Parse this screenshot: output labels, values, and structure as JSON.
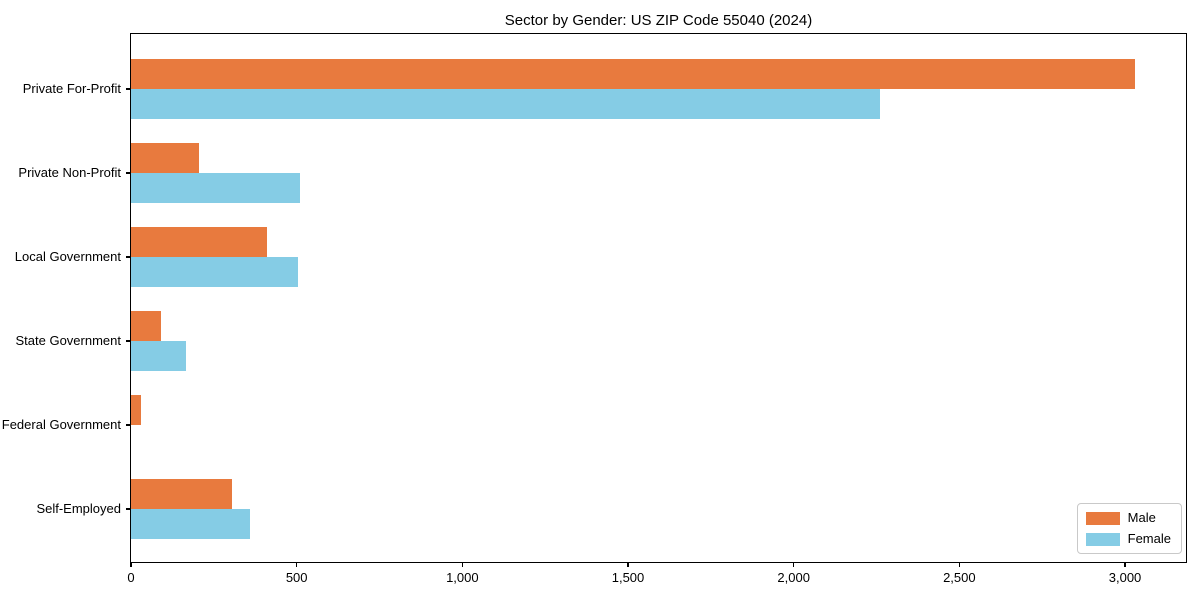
{
  "chart_data": {
    "type": "bar",
    "orientation": "horizontal",
    "title": "Sector by Gender: US ZIP Code 55040 (2024)",
    "categories": [
      "Private For-Profit",
      "Private Non-Profit",
      "Local Government",
      "State Government",
      "Federal Government",
      "Self-Employed"
    ],
    "series": [
      {
        "name": "Male",
        "color": "#E87A3E",
        "values": [
          3030,
          205,
          410,
          90,
          30,
          305
        ]
      },
      {
        "name": "Female",
        "color": "#85CCE5",
        "values": [
          2260,
          510,
          505,
          165,
          0,
          360
        ]
      }
    ],
    "xlabel": "",
    "ylabel": "",
    "xlim": [
      0,
      3190
    ],
    "xticks": [
      {
        "value": 0,
        "label": "0"
      },
      {
        "value": 500,
        "label": "500"
      },
      {
        "value": 1000,
        "label": "1,000"
      },
      {
        "value": 1500,
        "label": "1,500"
      },
      {
        "value": 2000,
        "label": "2,000"
      },
      {
        "value": 2500,
        "label": "2,500"
      },
      {
        "value": 3000,
        "label": "3,000"
      }
    ],
    "grid": false,
    "legend": {
      "position": "lower right",
      "entries": [
        "Male",
        "Female"
      ]
    }
  }
}
